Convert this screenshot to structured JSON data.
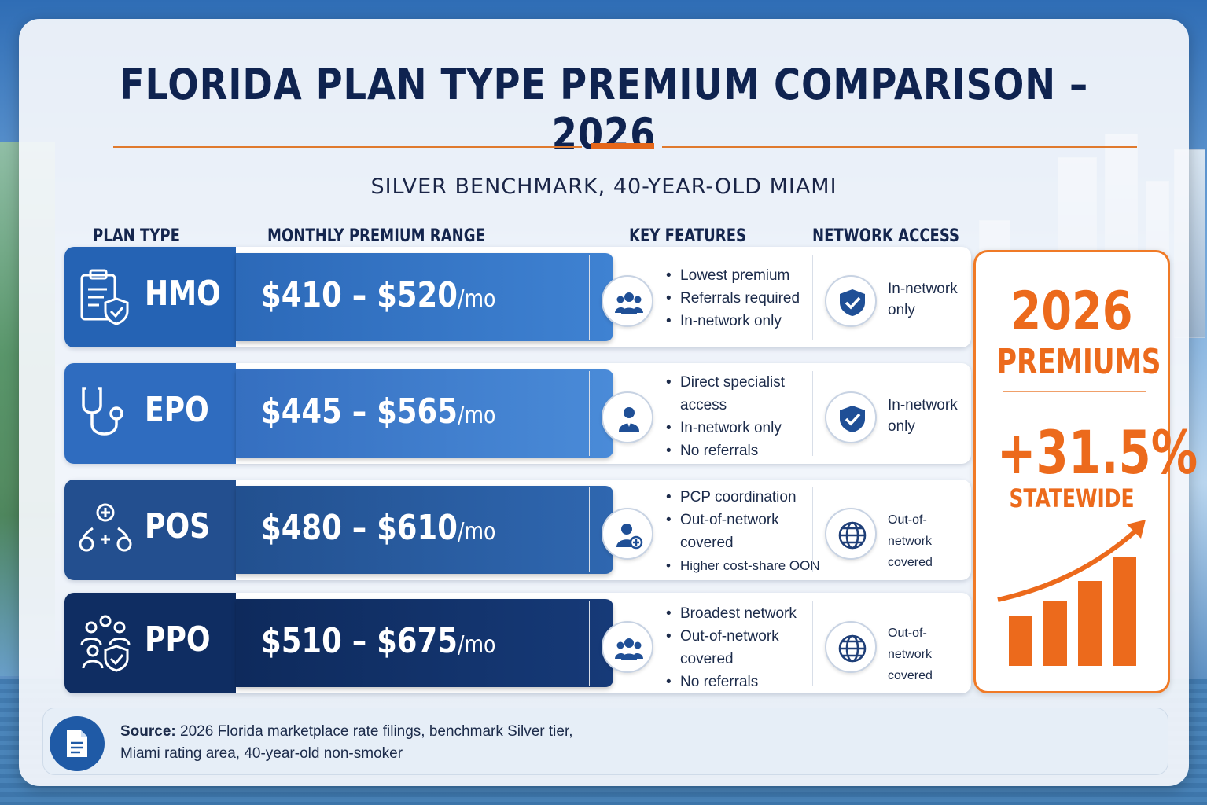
{
  "title": "FLORIDA PLAN TYPE PREMIUM COMPARISON – 2026",
  "subtitle": "SILVER BENCHMARK, 40-YEAR-OLD MIAMI",
  "columns": {
    "plan_type": "PLAN TYPE",
    "premium": "MONTHLY PREMIUM RANGE",
    "features": "KEY FEATURES",
    "network": "NETWORK ACCESS"
  },
  "colors": {
    "hmo": "#2563b4",
    "epo": "#3b78c9",
    "pos": "#244f8e",
    "ppo": "#0f2d62",
    "accent": "#ec6a1c"
  },
  "chart_data": {
    "type": "bar",
    "categories": [
      "HMO",
      "EPO",
      "POS",
      "PPO"
    ],
    "series": [
      {
        "values": [
          410,
          445,
          480,
          510
        ]
      },
      {
        "values": [
          520,
          565,
          610,
          675
        ]
      }
    ],
    "unit": "/mo",
    "ylabel": "",
    "title": ""
  },
  "plans": [
    {
      "name": "HMO",
      "plan_icon": "clipboard-shield-icon",
      "price": "$410 – $520",
      "unit": "/mo",
      "feature_icon": "group-icon",
      "features": [
        "Lowest premium",
        "Referrals required",
        "In-network only"
      ],
      "network_icon": "shield-check-icon",
      "network": [
        "In-network",
        "only"
      ]
    },
    {
      "name": "EPO",
      "plan_icon": "stethoscope-icon",
      "price": "$445 – $565",
      "unit": "/mo",
      "feature_icon": "doctor-icon",
      "features": [
        "Direct specialist",
        "access",
        "In-network only",
        "No referrals"
      ],
      "network_icon": "shield-check-icon",
      "network": [
        "In-network",
        "only"
      ]
    },
    {
      "name": "POS",
      "plan_icon": "care-network-icon",
      "price": "$480 – $610",
      "unit": "/mo",
      "feature_icon": "person-plus-icon",
      "features": [
        "PCP coordination",
        "Out-of-network",
        "covered",
        "Higher cost-share OON"
      ],
      "network_icon": "globe-icon",
      "network": [
        "Out-of-network",
        "covered"
      ]
    },
    {
      "name": "PPO",
      "plan_icon": "people-shield-icon",
      "price": "$510 – $675",
      "unit": "/mo",
      "feature_icon": "group-icon",
      "features": [
        "Broadest network",
        "Out-of-network",
        "covered",
        "No referrals"
      ],
      "network_icon": "globe-icon",
      "network": [
        "Out-of-network",
        "covered"
      ]
    }
  ],
  "stat": {
    "year": "2026",
    "label": "PREMIUMS",
    "change": "+31.5%",
    "scope": "STATEWIDE",
    "icon": "rising-bar-chart-icon"
  },
  "source": {
    "label": "Source:",
    "line1": " 2026 Florida marketplace rate filings, benchmark Silver tier,",
    "line2": "Miami rating area, 40-year-old non-smoker",
    "icon": "document-icon"
  }
}
